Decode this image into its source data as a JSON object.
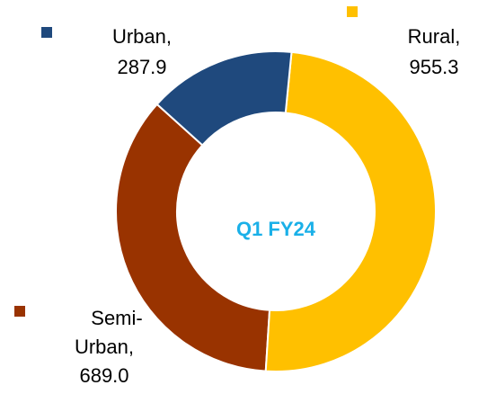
{
  "chart_data": {
    "type": "donut",
    "title": "Q1 FY24",
    "categories": [
      "Urban,",
      "Rural,",
      "Semi-Urban,"
    ],
    "values": [
      287.9,
      955.3,
      689.0
    ],
    "value_labels": [
      "287.9",
      "955.3",
      "689.0"
    ],
    "colors": [
      "#1f497d",
      "#ffc000",
      "#993300"
    ]
  }
}
